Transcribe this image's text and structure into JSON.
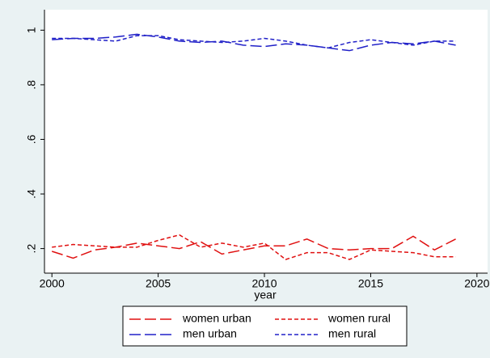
{
  "chart_data": {
    "type": "line",
    "xlabel": "year",
    "x": [
      2000,
      2001,
      2002,
      2003,
      2004,
      2005,
      2006,
      2007,
      2008,
      2009,
      2010,
      2011,
      2012,
      2013,
      2014,
      2015,
      2016,
      2017,
      2018,
      2019
    ],
    "series": [
      {
        "name": "women urban",
        "color": "#e01010",
        "dash": "long",
        "values": [
          0.19,
          0.165,
          0.195,
          0.205,
          0.22,
          0.21,
          0.2,
          0.225,
          0.18,
          0.195,
          0.21,
          0.21,
          0.235,
          0.2,
          0.195,
          0.2,
          0.2,
          0.245,
          0.195,
          0.235
        ]
      },
      {
        "name": "women rural",
        "color": "#e01010",
        "dash": "short",
        "values": [
          0.205,
          0.215,
          0.21,
          0.205,
          0.205,
          0.23,
          0.25,
          0.205,
          0.22,
          0.205,
          0.22,
          0.16,
          0.185,
          0.185,
          0.16,
          0.195,
          0.19,
          0.185,
          0.17,
          0.17
        ]
      },
      {
        "name": "men urban",
        "color": "#2020c8",
        "dash": "long",
        "values": [
          0.965,
          0.97,
          0.97,
          0.975,
          0.985,
          0.975,
          0.96,
          0.955,
          0.96,
          0.945,
          0.94,
          0.95,
          0.945,
          0.935,
          0.925,
          0.945,
          0.955,
          0.95,
          0.96,
          0.945
        ]
      },
      {
        "name": "men rural",
        "color": "#2020c8",
        "dash": "short",
        "values": [
          0.97,
          0.97,
          0.965,
          0.96,
          0.98,
          0.98,
          0.965,
          0.96,
          0.955,
          0.96,
          0.97,
          0.96,
          0.945,
          0.935,
          0.955,
          0.965,
          0.955,
          0.945,
          0.96,
          0.96
        ]
      }
    ],
    "xlim": [
      1999.65,
      2020.5
    ],
    "xticks": [
      2000,
      2005,
      2010,
      2015,
      2020
    ],
    "ylim": [
      0.11,
      1.075
    ],
    "yticks": [
      {
        "value": 0.2,
        "label": ".2"
      },
      {
        "value": 0.4,
        "label": ".4"
      },
      {
        "value": 0.6,
        "label": ".6"
      },
      {
        "value": 0.8,
        "label": ".8"
      },
      1
    ],
    "grid": false,
    "legend": "bottom"
  }
}
